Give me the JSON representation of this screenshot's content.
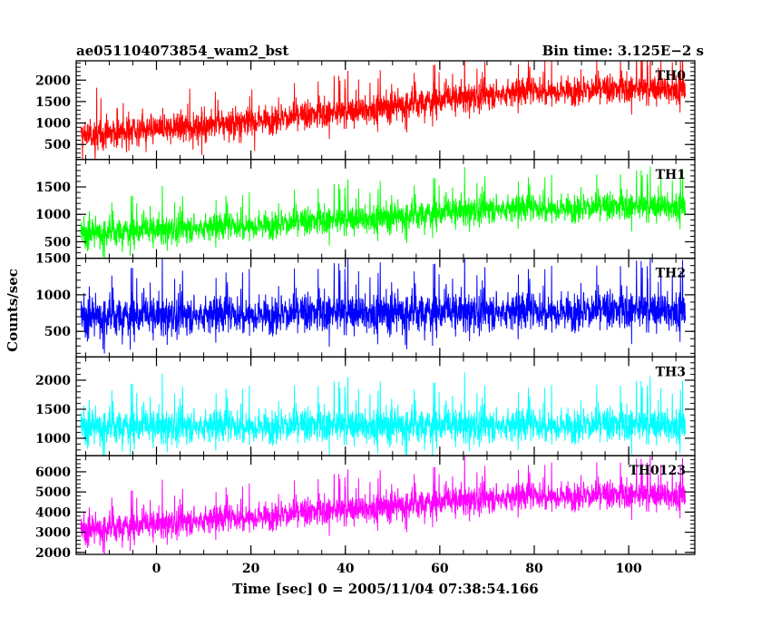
{
  "header": {
    "left": "ae051104073854_wam2_bst",
    "right": "Bin time: 3.125E−2 s"
  },
  "chart_data": {
    "type": "line",
    "xlabel": "Time [sec] 0 = 2005/11/04 07:38:54.166",
    "ylabel": "Counts/sec",
    "xlim": [
      -17,
      114
    ],
    "x_ticks": [
      0,
      20,
      40,
      60,
      80,
      100
    ],
    "panels": [
      {
        "name": "TH0",
        "color": "#ff0000",
        "ylim": [
          150,
          2450
        ],
        "y_ticks": [
          500,
          1000,
          1500,
          2000
        ],
        "trend": {
          "x": [
            -16,
            10,
            40,
            65,
            80,
            112
          ],
          "y": [
            700,
            950,
            1250,
            1600,
            1750,
            1800
          ]
        },
        "spread": 550
      },
      {
        "name": "TH1",
        "color": "#00ff00",
        "ylim": [
          200,
          2000
        ],
        "y_ticks": [
          500,
          1000,
          1500
        ],
        "trend": {
          "x": [
            -16,
            20,
            50,
            70,
            112
          ],
          "y": [
            650,
            800,
            950,
            1100,
            1150
          ]
        },
        "spread": 420
      },
      {
        "name": "TH2",
        "color": "#0000ff",
        "ylim": [
          150,
          1500
        ],
        "y_ticks": [
          500,
          1000,
          1500
        ],
        "trend": {
          "x": [
            -16,
            50,
            112
          ],
          "y": [
            700,
            760,
            790
          ]
        },
        "spread": 430
      },
      {
        "name": "TH3",
        "color": "#00ffff",
        "ylim": [
          700,
          2400
        ],
        "y_ticks": [
          1000,
          1500,
          2000
        ],
        "trend": {
          "x": [
            -16,
            50,
            112
          ],
          "y": [
            1200,
            1220,
            1230
          ]
        },
        "spread": 480
      },
      {
        "name": "TH0123",
        "color": "#ff00ff",
        "ylim": [
          1900,
          6800
        ],
        "y_ticks": [
          2000,
          3000,
          4000,
          5000,
          6000
        ],
        "trend": {
          "x": [
            -16,
            10,
            40,
            65,
            80,
            112
          ],
          "y": [
            3100,
            3600,
            4100,
            4600,
            4800,
            4850
          ]
        },
        "spread": 1150
      }
    ]
  }
}
